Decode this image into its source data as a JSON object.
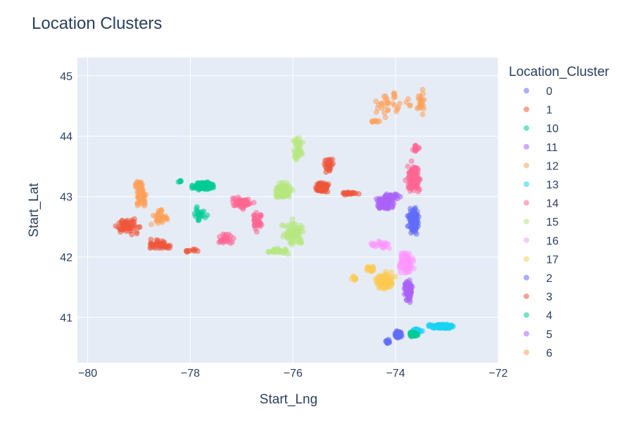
{
  "chart_data": {
    "type": "scatter",
    "title": "Location Clusters",
    "xlabel": "Start_Lng",
    "ylabel": "Start_Lat",
    "xlim": [
      -80.2,
      -72
    ],
    "ylim": [
      40.25,
      45.3
    ],
    "xticks": [
      -80,
      -78,
      -76,
      -74,
      -72
    ],
    "yticks": [
      41,
      42,
      43,
      44,
      45
    ],
    "xtick_labels": [
      "−80",
      "−78",
      "−76",
      "−74",
      "−72"
    ],
    "ytick_labels": [
      "41",
      "42",
      "43",
      "44",
      "45"
    ],
    "grid": true,
    "legend": {
      "title": "Location_Cluster",
      "placement": "right"
    },
    "series": [
      {
        "name": "0",
        "color": "#636efa",
        "clusters": [
          [
            -73.65,
            42.6,
            0.15,
            0.3,
            140
          ]
        ]
      },
      {
        "name": "1",
        "color": "#ef553b",
        "clusters": [
          [
            -79.2,
            42.5,
            0.35,
            0.18,
            60
          ],
          [
            -78.6,
            42.2,
            0.4,
            0.12,
            45
          ],
          [
            -75.45,
            43.15,
            0.2,
            0.12,
            90
          ],
          [
            -75.3,
            43.5,
            0.15,
            0.25,
            25
          ],
          [
            -74.9,
            43.05,
            0.25,
            0.04,
            20
          ]
        ]
      },
      {
        "name": "10",
        "color": "#00cc96",
        "clusters": [
          [
            -77.75,
            43.18,
            0.3,
            0.1,
            140
          ],
          [
            -77.8,
            42.7,
            0.2,
            0.25,
            20
          ],
          [
            -78.2,
            43.25,
            0.06,
            0.04,
            6
          ]
        ]
      },
      {
        "name": "11",
        "color": "#ab63fa",
        "clusters": [
          [
            -74.2,
            42.88,
            0.3,
            0.18,
            90
          ],
          [
            -74.1,
            43.0,
            0.25,
            0.08,
            40
          ]
        ]
      },
      {
        "name": "12",
        "color": "#ffa15a",
        "clusters": [
          [
            -78.95,
            43.0,
            0.15,
            0.2,
            90
          ],
          [
            -78.6,
            42.65,
            0.25,
            0.25,
            40
          ],
          [
            -79.0,
            43.2,
            0.1,
            0.08,
            25
          ]
        ]
      },
      {
        "name": "13",
        "color": "#19d3f3",
        "clusters": [
          [
            -73.1,
            40.85,
            0.35,
            0.05,
            150
          ],
          [
            -73.6,
            40.78,
            0.15,
            0.05,
            40
          ]
        ]
      },
      {
        "name": "14",
        "color": "#ff6692",
        "clusters": [
          [
            -73.65,
            43.3,
            0.2,
            0.35,
            120
          ],
          [
            -77.0,
            42.9,
            0.3,
            0.15,
            50
          ],
          [
            -76.7,
            42.6,
            0.2,
            0.3,
            35
          ],
          [
            -77.3,
            42.3,
            0.3,
            0.15,
            25
          ],
          [
            -73.6,
            43.8,
            0.1,
            0.1,
            15
          ]
        ]
      },
      {
        "name": "15",
        "color": "#b6e880",
        "clusters": [
          [
            -76.2,
            43.1,
            0.25,
            0.2,
            120
          ],
          [
            -75.9,
            43.8,
            0.15,
            0.3,
            40
          ],
          [
            -76.0,
            42.4,
            0.35,
            0.35,
            80
          ],
          [
            -76.3,
            42.1,
            0.3,
            0.06,
            30
          ]
        ]
      },
      {
        "name": "16",
        "color": "#ff97ff",
        "clusters": [
          [
            -73.8,
            41.9,
            0.18,
            0.25,
            130
          ],
          [
            -74.3,
            42.2,
            0.3,
            0.1,
            25
          ]
        ]
      },
      {
        "name": "17",
        "color": "#fecb52",
        "clusters": [
          [
            -74.2,
            41.6,
            0.25,
            0.2,
            100
          ],
          [
            -74.5,
            41.8,
            0.15,
            0.1,
            20
          ],
          [
            -74.8,
            41.65,
            0.1,
            0.08,
            8
          ]
        ]
      },
      {
        "name": "2",
        "color": "#636efa",
        "clusters": [
          [
            -73.95,
            40.72,
            0.1,
            0.1,
            90
          ],
          [
            -74.15,
            40.6,
            0.08,
            0.05,
            15
          ]
        ]
      },
      {
        "name": "3",
        "color": "#ef553b",
        "clusters": [
          [
            -78.0,
            42.1,
            0.2,
            0.06,
            10
          ]
        ]
      },
      {
        "name": "4",
        "color": "#00cc96",
        "clusters": [
          [
            -73.65,
            40.72,
            0.12,
            0.05,
            80
          ]
        ]
      },
      {
        "name": "5",
        "color": "#ab63fa",
        "clusters": [
          [
            -73.75,
            41.45,
            0.12,
            0.25,
            110
          ]
        ]
      },
      {
        "name": "6",
        "color": "#ffa15a",
        "clusters": [
          [
            -74.0,
            44.55,
            0.6,
            0.35,
            35
          ],
          [
            -73.5,
            44.6,
            0.12,
            0.35,
            20
          ],
          [
            -74.4,
            44.25,
            0.15,
            0.05,
            8
          ]
        ]
      }
    ]
  }
}
